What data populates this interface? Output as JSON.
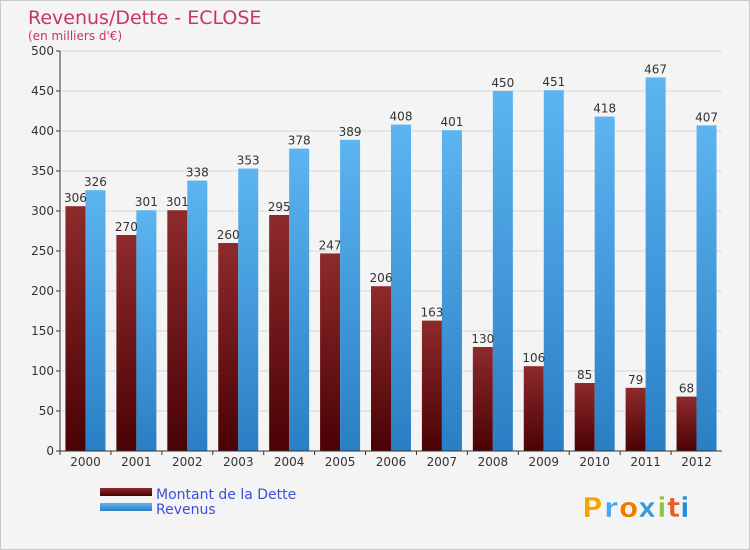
{
  "chart_data": {
    "type": "bar",
    "title": "Revenus/Dette - ECLOSE",
    "subtitle": "(en milliers d'€)",
    "categories": [
      "2000",
      "2001",
      "2002",
      "2003",
      "2004",
      "2005",
      "2006",
      "2007",
      "2008",
      "2009",
      "2010",
      "2011",
      "2012"
    ],
    "series": [
      {
        "name": "Montant de la Dette",
        "color": "#7a0f12",
        "values": [
          306,
          270,
          301,
          260,
          295,
          247,
          206,
          163,
          130,
          106,
          85,
          79,
          68
        ]
      },
      {
        "name": "Revenus",
        "color": "#3f9fe6",
        "values": [
          326,
          301,
          338,
          353,
          378,
          389,
          408,
          401,
          450,
          451,
          418,
          467,
          407
        ]
      }
    ],
    "ylim": [
      0,
      500
    ],
    "yticks": [
      0,
      50,
      100,
      150,
      200,
      250,
      300,
      350,
      400,
      450,
      500
    ],
    "grid": true,
    "legend": "bottom-left"
  },
  "logo": {
    "letters": [
      "P",
      "r",
      "o",
      "x",
      "i",
      "t",
      "i"
    ],
    "colors": [
      "#f2a600",
      "#4aa8e8",
      "#f07a00",
      "#3c9ad6",
      "#8dc63f",
      "#e85d2a",
      "#1f8fd6"
    ]
  }
}
